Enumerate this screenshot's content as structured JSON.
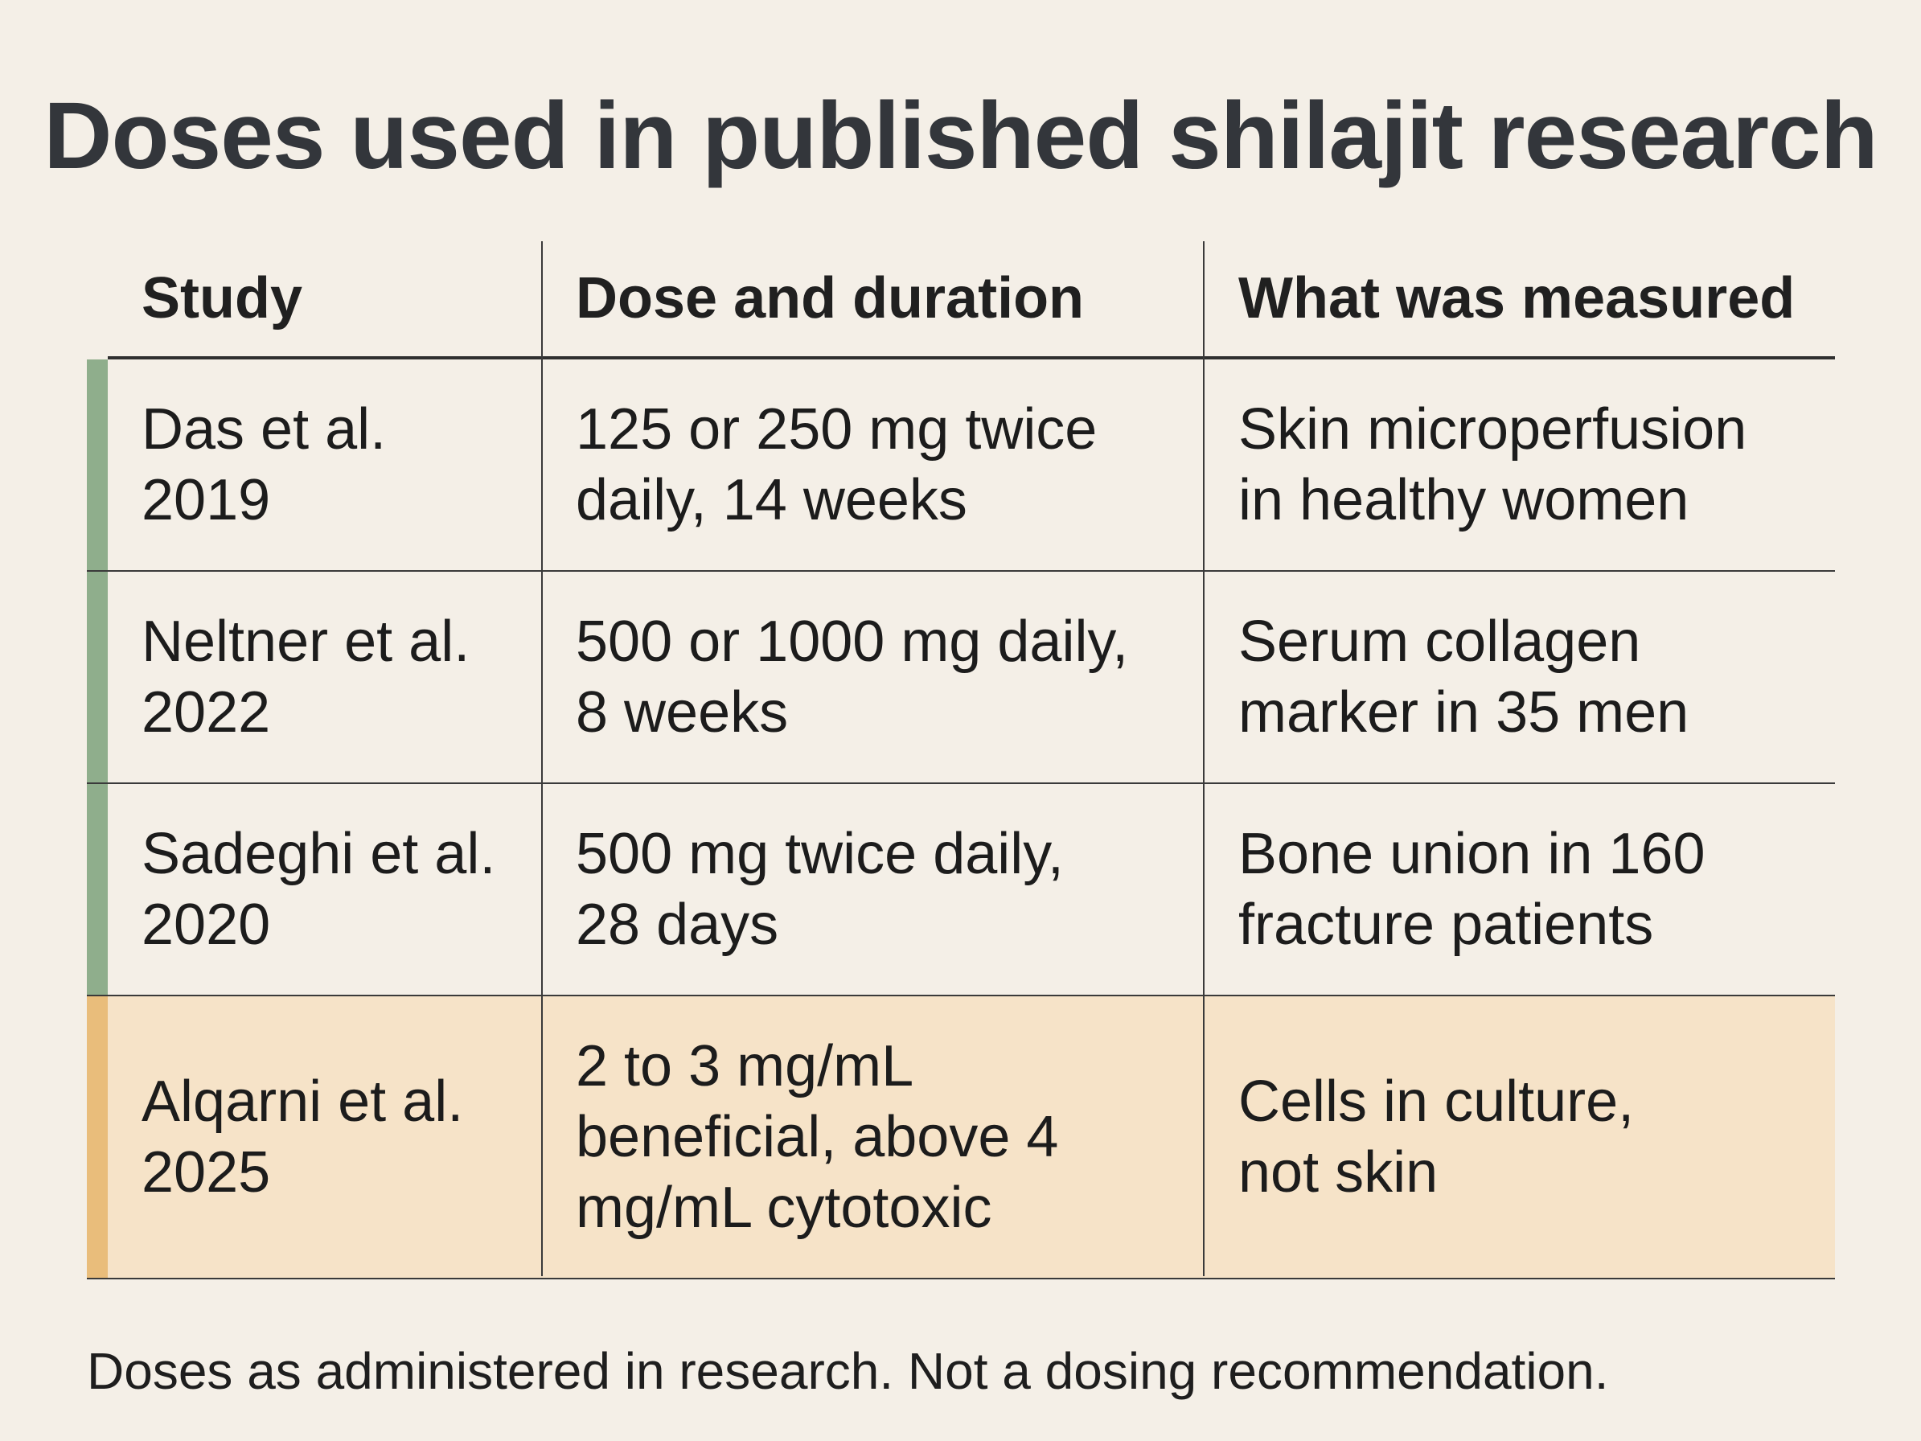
{
  "title": "Doses used in published shilajit research",
  "colors": {
    "background": "#f4efe7",
    "accent_green": "#8fae8c",
    "accent_orange": "#e9bd7b",
    "highlight_row": "#f6e3c8"
  },
  "table": {
    "headers": [
      "Study",
      "Dose and duration",
      "What was measured"
    ],
    "rows": [
      {
        "study_line1": "Das et al.",
        "study_line2": "2019",
        "dose_line1": "125 or 250 mg twice",
        "dose_line2": "daily, 14 weeks",
        "measured_line1": "Skin microperfusion",
        "measured_line2": "in healthy women"
      },
      {
        "study_line1": "Neltner et al.",
        "study_line2": "2022",
        "dose_line1": "500 or 1000 mg daily,",
        "dose_line2": "8 weeks",
        "measured_line1": "Serum collagen",
        "measured_line2": "marker in 35 men"
      },
      {
        "study_line1": "Sadeghi et al.",
        "study_line2": "2020",
        "dose_line1": "500 mg twice daily,",
        "dose_line2": "28 days",
        "measured_line1": "Bone union in 160",
        "measured_line2": "fracture patients"
      },
      {
        "study_line1": "Alqarni et al.",
        "study_line2": "2025",
        "dose_line1": "2 to 3 mg/mL",
        "dose_line2": "beneficial, above 4",
        "dose_line3": "mg/mL cytotoxic",
        "measured_line1": "Cells in culture,",
        "measured_line2": "not skin"
      }
    ]
  },
  "footnote": "Doses as administered in research. Not a dosing recommendation."
}
